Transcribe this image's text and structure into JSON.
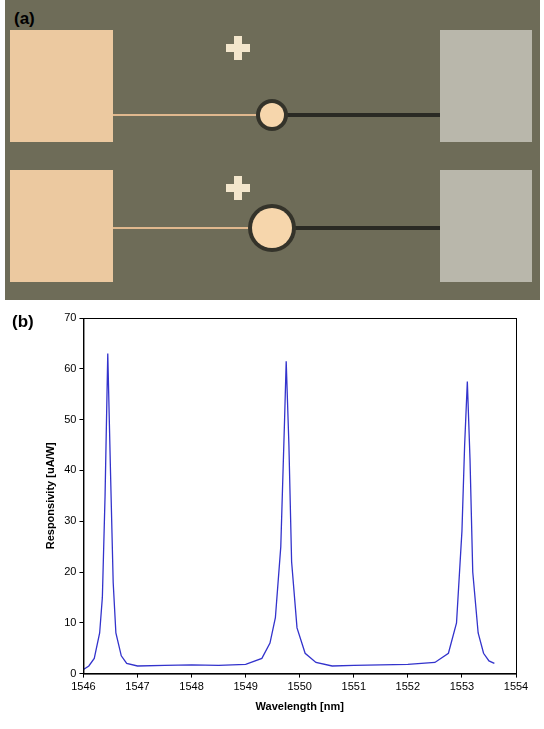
{
  "panel_labels": [
    "(a)",
    "(b)"
  ],
  "chart_data": {
    "type": "line",
    "x_label": "Wavelength [nm]",
    "y_label": "Responsivity [uA/W]",
    "x": [
      1546.0,
      1546.1,
      1546.2,
      1546.3,
      1546.35,
      1546.4,
      1546.45,
      1546.5,
      1546.55,
      1546.6,
      1546.7,
      1546.8,
      1547.0,
      1547.5,
      1548.0,
      1548.5,
      1549.0,
      1549.3,
      1549.45,
      1549.55,
      1549.65,
      1549.72,
      1549.75,
      1549.8,
      1549.85,
      1549.95,
      1550.1,
      1550.3,
      1550.6,
      1551.0,
      1551.5,
      1552.0,
      1552.5,
      1552.75,
      1552.9,
      1553.0,
      1553.05,
      1553.1,
      1553.15,
      1553.2,
      1553.3,
      1553.4,
      1553.5,
      1553.6
    ],
    "values": [
      0.8,
      1.5,
      3,
      8,
      15,
      35,
      63,
      40,
      18,
      8,
      3.5,
      2,
      1.5,
      1.6,
      1.7,
      1.6,
      1.8,
      3,
      6,
      11,
      25,
      50,
      61.5,
      45,
      22,
      9,
      4,
      2.2,
      1.5,
      1.6,
      1.7,
      1.8,
      2.2,
      4,
      10,
      28,
      45,
      57.5,
      42,
      20,
      8,
      4,
      2.5,
      2
    ],
    "color": "#3333cc",
    "xlim": [
      1546,
      1554
    ],
    "xticks": [
      1546,
      1547,
      1548,
      1549,
      1550,
      1551,
      1552,
      1553,
      1554
    ],
    "ylim": [
      0,
      70
    ],
    "yticks": [
      0,
      10,
      20,
      30,
      40,
      50,
      60,
      70
    ],
    "grid": false
  }
}
